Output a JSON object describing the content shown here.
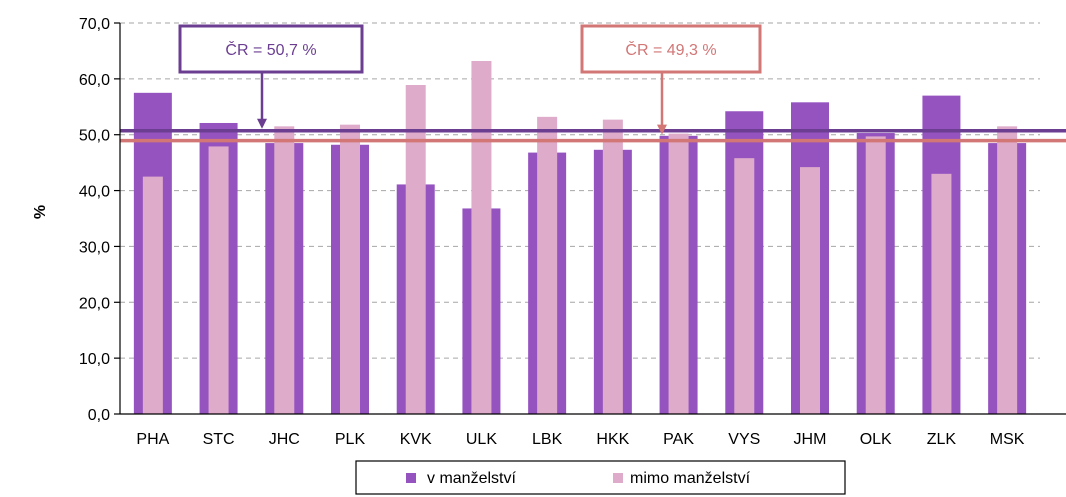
{
  "chart_data": {
    "type": "bar",
    "ylabel": "%",
    "ylim": [
      0,
      70
    ],
    "yticks": [
      "0,0",
      "10,0",
      "20,0",
      "30,0",
      "40,0",
      "50,0",
      "60,0",
      "70,0"
    ],
    "ytick_values": [
      0,
      10,
      20,
      30,
      40,
      50,
      60,
      70
    ],
    "grid": true,
    "legend_position": "bottom",
    "categories": [
      "PHA",
      "STC",
      "JHC",
      "PLK",
      "KVK",
      "ULK",
      "LBK",
      "HKK",
      "PAK",
      "VYS",
      "JHM",
      "OLK",
      "ZLK",
      "MSK"
    ],
    "series": [
      {
        "name": "v manželství",
        "color": "#9553c0",
        "values": [
          57.5,
          52.1,
          48.5,
          48.2,
          41.1,
          36.8,
          46.8,
          47.3,
          49.8,
          54.2,
          55.8,
          50.3,
          57.0,
          48.5
        ]
      },
      {
        "name": "mimo manželství",
        "color": "#deabca",
        "values": [
          42.5,
          47.9,
          51.5,
          51.8,
          58.9,
          63.2,
          53.2,
          52.7,
          50.2,
          45.8,
          44.2,
          49.7,
          43.0,
          51.5
        ]
      }
    ],
    "reference_lines": [
      {
        "label": "ČR = 50,7 %",
        "value": 50.7,
        "color": "#6b3e92"
      },
      {
        "label": "ČR = 49,3 %",
        "value": 49.3,
        "color": "#d27676"
      }
    ]
  }
}
